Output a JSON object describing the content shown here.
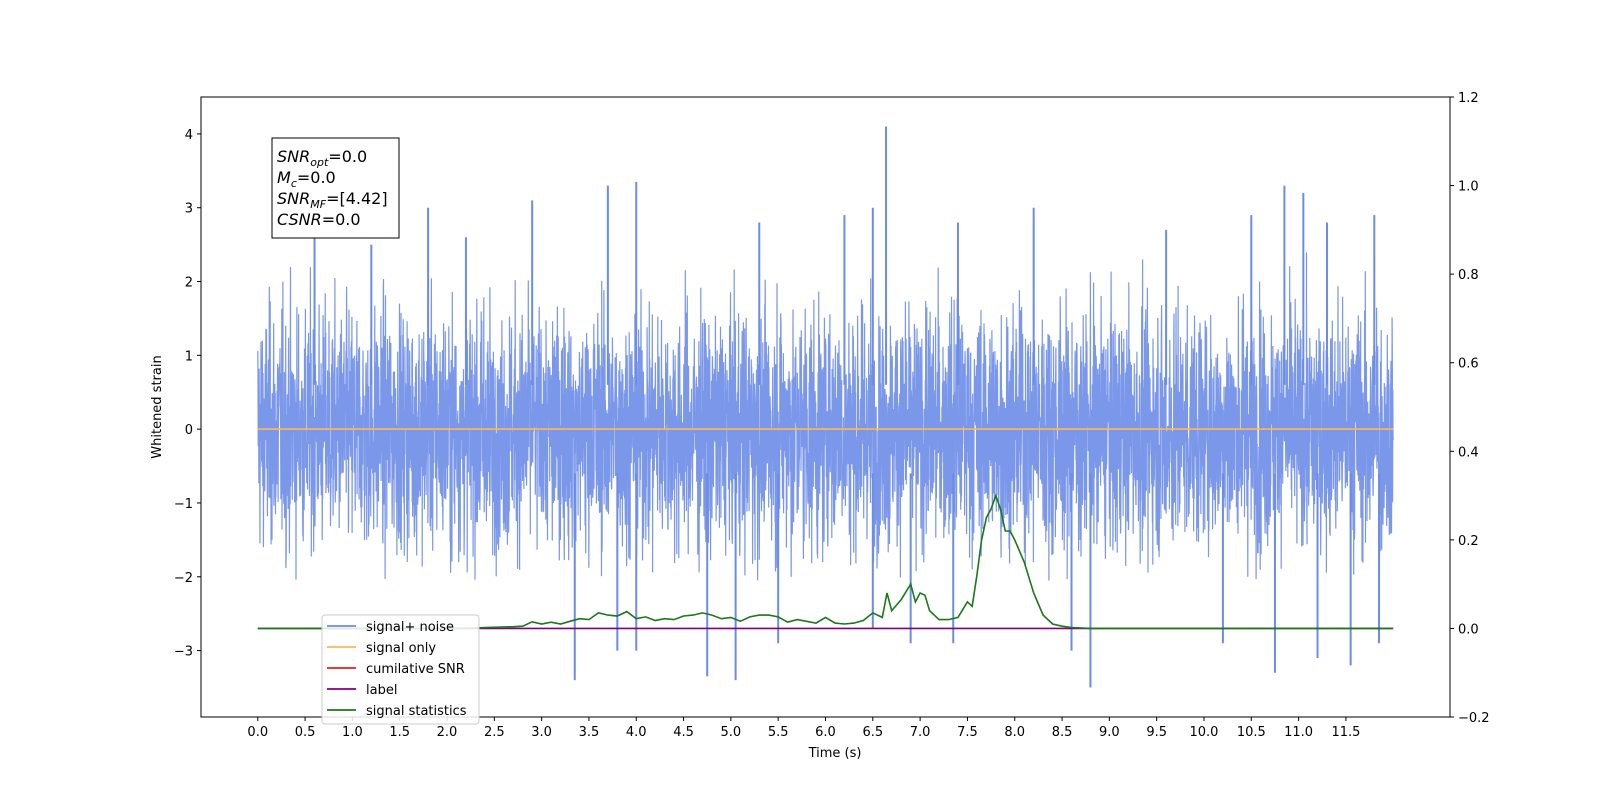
{
  "chart_data": {
    "type": "line",
    "xlabel": "Time (s)",
    "ylabel": "Whitened strain",
    "xlim": [
      -0.6,
      12.6
    ],
    "ylim": [
      -3.9,
      4.5
    ],
    "y2lim": [
      -0.2,
      1.2
    ],
    "x_ticks": [
      "0.0",
      "0.5",
      "1.0",
      "1.5",
      "2.0",
      "2.5",
      "3.0",
      "3.5",
      "4.0",
      "4.5",
      "5.0",
      "5.5",
      "6.0",
      "6.5",
      "7.0",
      "7.5",
      "8.0",
      "8.5",
      "9.0",
      "9.5",
      "10.0",
      "10.5",
      "11.0",
      "11.5"
    ],
    "y_ticks": [
      "−3",
      "−2",
      "−1",
      "0",
      "1",
      "2",
      "3",
      "4"
    ],
    "y2_ticks": [
      "−0.2",
      "0.0",
      "0.2",
      "0.4",
      "0.6",
      "0.8",
      "1.0",
      "1.2"
    ],
    "grid": false,
    "legend_placement": "lower-left",
    "series": [
      {
        "name": "signal+ noise",
        "color": "#6b8ce8",
        "axis": "left",
        "x_range": [
          0.0,
          12.0
        ],
        "envelope_upper": 2.4,
        "envelope_lower": -2.1,
        "spikes": [
          {
            "x": 0.6,
            "y": 2.6
          },
          {
            "x": 1.2,
            "y": 2.5
          },
          {
            "x": 1.8,
            "y": 3.0
          },
          {
            "x": 2.2,
            "y": 2.6
          },
          {
            "x": 2.9,
            "y": 3.1
          },
          {
            "x": 3.7,
            "y": 3.3
          },
          {
            "x": 4.0,
            "y": 3.35
          },
          {
            "x": 5.3,
            "y": 2.8
          },
          {
            "x": 6.2,
            "y": 2.9
          },
          {
            "x": 6.5,
            "y": 3.0
          },
          {
            "x": 6.64,
            "y": 4.1
          },
          {
            "x": 7.4,
            "y": 2.8
          },
          {
            "x": 8.2,
            "y": 3.0
          },
          {
            "x": 9.6,
            "y": 2.7
          },
          {
            "x": 10.5,
            "y": 2.9
          },
          {
            "x": 10.85,
            "y": 3.3
          },
          {
            "x": 11.05,
            "y": 3.2
          },
          {
            "x": 11.3,
            "y": 2.8
          },
          {
            "x": 11.8,
            "y": 2.9
          },
          {
            "x": 3.35,
            "y": -3.4
          },
          {
            "x": 3.8,
            "y": -3.0
          },
          {
            "x": 4.0,
            "y": -3.0
          },
          {
            "x": 4.75,
            "y": -3.35
          },
          {
            "x": 5.05,
            "y": -3.4
          },
          {
            "x": 5.5,
            "y": -2.9
          },
          {
            "x": 6.5,
            "y": -2.7
          },
          {
            "x": 6.9,
            "y": -2.9
          },
          {
            "x": 7.35,
            "y": -2.9
          },
          {
            "x": 8.6,
            "y": -3.0
          },
          {
            "x": 8.8,
            "y": -3.5
          },
          {
            "x": 10.2,
            "y": -2.9
          },
          {
            "x": 10.75,
            "y": -3.3
          },
          {
            "x": 11.2,
            "y": -3.1
          },
          {
            "x": 11.55,
            "y": -3.2
          },
          {
            "x": 11.85,
            "y": -2.9
          }
        ]
      },
      {
        "name": "signal only",
        "color": "#ffb84d",
        "axis": "left",
        "x": [
          0.0,
          12.0
        ],
        "y": [
          0.0,
          0.0
        ]
      },
      {
        "name": "cumilative SNR",
        "color": "#e02020",
        "axis": "right",
        "x": [],
        "y": []
      },
      {
        "name": "label",
        "color": "#800080",
        "axis": "right",
        "x": [
          0.0,
          12.0
        ],
        "y": [
          0.0,
          0.0
        ]
      },
      {
        "name": "signal statistics",
        "color": "#1a7a1a",
        "axis": "right",
        "x": [
          0.0,
          2.2,
          2.4,
          2.7,
          2.8,
          2.9,
          3.0,
          3.1,
          3.2,
          3.3,
          3.4,
          3.5,
          3.6,
          3.7,
          3.8,
          3.9,
          4.0,
          4.1,
          4.2,
          4.3,
          4.4,
          4.5,
          4.6,
          4.7,
          4.8,
          4.9,
          5.0,
          5.1,
          5.2,
          5.3,
          5.4,
          5.5,
          5.6,
          5.7,
          5.8,
          5.9,
          6.0,
          6.1,
          6.2,
          6.3,
          6.4,
          6.5,
          6.6,
          6.65,
          6.7,
          6.8,
          6.9,
          6.95,
          7.0,
          7.05,
          7.1,
          7.2,
          7.3,
          7.4,
          7.5,
          7.55,
          7.6,
          7.65,
          7.7,
          7.75,
          7.8,
          7.85,
          7.9,
          7.95,
          8.0,
          8.1,
          8.2,
          8.3,
          8.4,
          8.5,
          8.6,
          8.8,
          12.0
        ],
        "y": [
          0.0,
          0.0,
          0.002,
          0.004,
          0.005,
          0.015,
          0.01,
          0.014,
          0.01,
          0.016,
          0.022,
          0.02,
          0.035,
          0.03,
          0.028,
          0.038,
          0.022,
          0.026,
          0.018,
          0.022,
          0.02,
          0.028,
          0.03,
          0.035,
          0.03,
          0.022,
          0.025,
          0.016,
          0.026,
          0.03,
          0.03,
          0.026,
          0.014,
          0.02,
          0.016,
          0.012,
          0.025,
          0.012,
          0.01,
          0.012,
          0.018,
          0.035,
          0.025,
          0.08,
          0.04,
          0.065,
          0.1,
          0.06,
          0.08,
          0.075,
          0.04,
          0.02,
          0.02,
          0.025,
          0.06,
          0.05,
          0.12,
          0.2,
          0.25,
          0.27,
          0.3,
          0.27,
          0.22,
          0.22,
          0.2,
          0.15,
          0.08,
          0.03,
          0.01,
          0.005,
          0.002,
          0.0,
          0.0
        ]
      }
    ],
    "annotation": {
      "lines": [
        {
          "sym": "SNR",
          "sub": "opt",
          "rest": "=0.0"
        },
        {
          "sym": "M",
          "sub": "c",
          "rest": "=0.0"
        },
        {
          "sym": "SNR",
          "sub": "MF",
          "rest": "=[4.42]"
        },
        {
          "sym": "CSNR",
          "sub": "",
          "rest": "=0.0"
        }
      ]
    }
  }
}
